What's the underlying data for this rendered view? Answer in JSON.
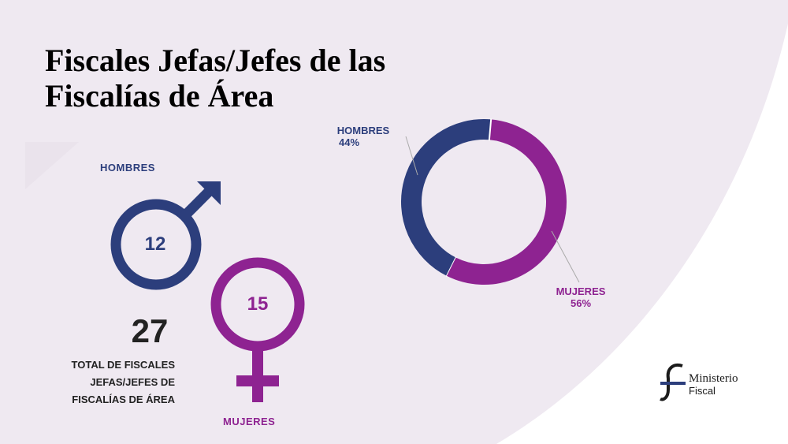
{
  "title_line1": "Fiscales Jefas/Jefes de las",
  "title_line2": "Fiscalías de Área",
  "symbols": {
    "hombres": {
      "label": "HOMBRES",
      "count": "12"
    },
    "mujeres": {
      "label": "MUJERES",
      "count": "15"
    }
  },
  "total": {
    "value": "27",
    "caption_line1": "TOTAL DE FISCALES",
    "caption_line2": "JEFAS/JEFES DE",
    "caption_line3": "FISCALÍAS DE ÁREA"
  },
  "colors": {
    "hombres": "#2c3e7c",
    "mujeres": "#8e2391",
    "background_shape": "#efe9f1"
  },
  "chart_data": {
    "type": "pie",
    "variant": "donut",
    "title": "",
    "series": [
      {
        "name": "HOMBRES",
        "value": 44,
        "value_label": "44%",
        "color": "#2c3e7c"
      },
      {
        "name": "MUJERES",
        "value": 56,
        "value_label": "56%",
        "color": "#8e2391"
      }
    ]
  },
  "logo": {
    "line1": "Ministerio",
    "line2": "Fiscal"
  }
}
